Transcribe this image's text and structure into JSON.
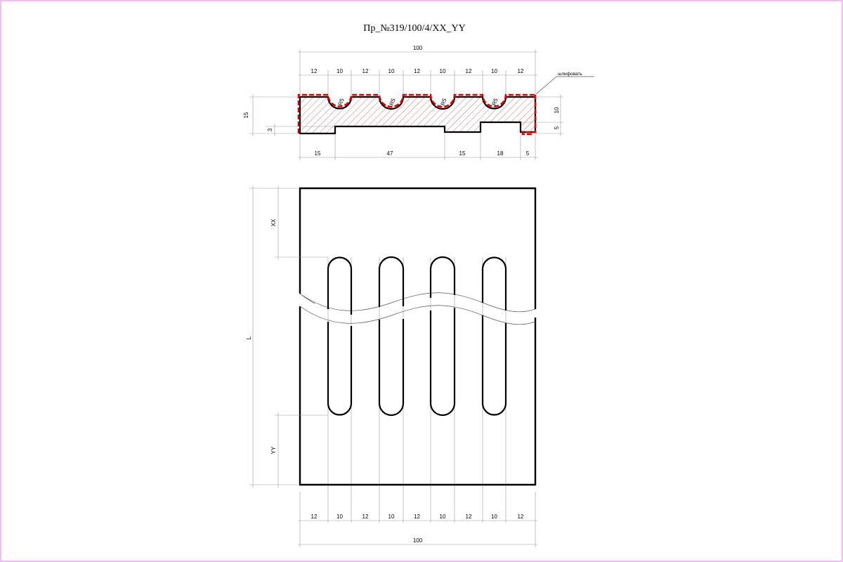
{
  "title": "Пр_№319/100/4/XX_YY",
  "colors": {
    "border": "#f2a6ee",
    "contour": "#000000",
    "sanding": "#e00000",
    "hatch": "#b85050",
    "dimension": "#9a9a9a"
  },
  "section": {
    "top_total": "100",
    "top_segments": [
      "12",
      "10",
      "12",
      "10",
      "12",
      "10",
      "12",
      "10",
      "12"
    ],
    "radius_labels": [
      "R5",
      "R5",
      "R5",
      "R5"
    ],
    "left_height": "15",
    "left_step": "3",
    "right_upper": "10",
    "right_lower": "5",
    "bottom_segments": [
      "15",
      "47",
      "15",
      "18",
      "5"
    ],
    "sanding_note": "шлифовать"
  },
  "plan": {
    "length_label": "L",
    "xx_label": "XX",
    "yy_label": "YY",
    "bottom_segments": [
      "12",
      "10",
      "12",
      "10",
      "12",
      "10",
      "12",
      "10",
      "12"
    ],
    "bottom_total": "100"
  }
}
